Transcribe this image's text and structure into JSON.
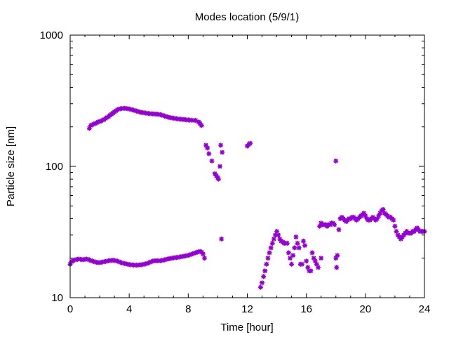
{
  "chart_data": {
    "type": "scatter",
    "title": "Modes location (5/9/1)",
    "xlabel": "Time [hour]",
    "ylabel": "Particle size [nm]",
    "xlim": [
      0,
      24
    ],
    "ylim": [
      10,
      1000
    ],
    "yscale": "log",
    "xticks": [
      0,
      4,
      8,
      12,
      16,
      20,
      24
    ],
    "yticks": [
      10,
      100,
      1000
    ],
    "ytick_labels": [
      "10",
      "100",
      "1000"
    ],
    "grid": false,
    "legend": "none",
    "marker_color": "#9400d3",
    "series": [
      {
        "points": [
          [
            1.3,
            195
          ],
          [
            1.4,
            205
          ],
          [
            1.5,
            208
          ],
          [
            1.6,
            210
          ],
          [
            1.7,
            212
          ],
          [
            1.8,
            215
          ],
          [
            1.9,
            218
          ],
          [
            2.0,
            220
          ],
          [
            2.1,
            222
          ],
          [
            2.2,
            225
          ],
          [
            2.3,
            228
          ],
          [
            2.4,
            232
          ],
          [
            2.5,
            236
          ],
          [
            2.6,
            240
          ],
          [
            2.7,
            245
          ],
          [
            2.8,
            250
          ],
          [
            2.9,
            255
          ],
          [
            3.0,
            260
          ],
          [
            3.1,
            265
          ],
          [
            3.2,
            270
          ],
          [
            3.3,
            273
          ],
          [
            3.4,
            275
          ],
          [
            3.5,
            276
          ],
          [
            3.6,
            277
          ],
          [
            3.7,
            277
          ],
          [
            3.8,
            276
          ],
          [
            3.9,
            275
          ],
          [
            4.0,
            274
          ],
          [
            4.1,
            272
          ],
          [
            4.2,
            270
          ],
          [
            4.3,
            268
          ],
          [
            4.4,
            266
          ],
          [
            4.5,
            264
          ],
          [
            4.6,
            262
          ],
          [
            4.7,
            260
          ],
          [
            4.8,
            258
          ],
          [
            4.9,
            257
          ],
          [
            5.0,
            256
          ],
          [
            5.1,
            255
          ],
          [
            5.2,
            254
          ],
          [
            5.3,
            253
          ],
          [
            5.4,
            252
          ],
          [
            5.5,
            252
          ],
          [
            5.6,
            251
          ],
          [
            5.7,
            251
          ],
          [
            5.8,
            250
          ],
          [
            5.9,
            250
          ],
          [
            6.0,
            249
          ],
          [
            6.1,
            248
          ],
          [
            6.2,
            246
          ],
          [
            6.3,
            244
          ],
          [
            6.4,
            242
          ],
          [
            6.5,
            240
          ],
          [
            6.6,
            238
          ],
          [
            6.7,
            236
          ],
          [
            6.8,
            235
          ],
          [
            6.9,
            234
          ],
          [
            7.0,
            233
          ],
          [
            7.1,
            232
          ],
          [
            7.2,
            231
          ],
          [
            7.3,
            230
          ],
          [
            7.4,
            229
          ],
          [
            7.5,
            229
          ],
          [
            7.6,
            228
          ],
          [
            7.7,
            228
          ],
          [
            7.8,
            227
          ],
          [
            7.9,
            226
          ],
          [
            8.0,
            226
          ],
          [
            8.1,
            225
          ],
          [
            8.2,
            225
          ],
          [
            8.4,
            224
          ],
          [
            8.5,
            224
          ],
          [
            8.7,
            218
          ],
          [
            8.8,
            212
          ],
          [
            8.9,
            205
          ],
          [
            9.2,
            145
          ],
          [
            9.3,
            138
          ],
          [
            9.4,
            125
          ],
          [
            9.6,
            110
          ],
          [
            9.8,
            88
          ],
          [
            9.9,
            85
          ],
          [
            10.0,
            82
          ],
          [
            10.05,
            80
          ],
          [
            10.15,
            100
          ],
          [
            10.2,
            145
          ],
          [
            10.3,
            128
          ],
          [
            10.25,
            28
          ],
          [
            12.0,
            143
          ],
          [
            12.1,
            147
          ],
          [
            12.2,
            150
          ],
          [
            18.0,
            110
          ],
          [
            0.0,
            18
          ],
          [
            0.1,
            18.8
          ],
          [
            0.2,
            19.2
          ],
          [
            0.3,
            19.4
          ],
          [
            0.4,
            19.5
          ],
          [
            0.5,
            19.6
          ],
          [
            0.6,
            19.7
          ],
          [
            0.7,
            19.6
          ],
          [
            0.8,
            19.5
          ],
          [
            0.9,
            19.5
          ],
          [
            1.0,
            19.6
          ],
          [
            1.1,
            19.7
          ],
          [
            1.2,
            19.6
          ],
          [
            1.3,
            19.4
          ],
          [
            1.4,
            19.2
          ],
          [
            1.5,
            19.0
          ],
          [
            1.6,
            18.9
          ],
          [
            1.7,
            18.7
          ],
          [
            1.8,
            18.6
          ],
          [
            1.9,
            18.5
          ],
          [
            2.0,
            18.5
          ],
          [
            2.1,
            18.6
          ],
          [
            2.2,
            18.7
          ],
          [
            2.3,
            18.8
          ],
          [
            2.4,
            18.9
          ],
          [
            2.5,
            19.0
          ],
          [
            2.6,
            19.1
          ],
          [
            2.7,
            19.2
          ],
          [
            2.8,
            19.2
          ],
          [
            2.9,
            19.3
          ],
          [
            3.0,
            19.2
          ],
          [
            3.1,
            19.1
          ],
          [
            3.2,
            19.0
          ],
          [
            3.3,
            18.8
          ],
          [
            3.4,
            18.6
          ],
          [
            3.5,
            18.4
          ],
          [
            3.6,
            18.3
          ],
          [
            3.7,
            18.2
          ],
          [
            3.8,
            18.1
          ],
          [
            3.9,
            18.0
          ],
          [
            4.0,
            17.9
          ],
          [
            4.1,
            17.8
          ],
          [
            4.2,
            17.8
          ],
          [
            4.3,
            17.7
          ],
          [
            4.4,
            17.7
          ],
          [
            4.5,
            17.7
          ],
          [
            4.6,
            17.7
          ],
          [
            4.7,
            17.8
          ],
          [
            4.8,
            17.8
          ],
          [
            4.9,
            17.9
          ],
          [
            5.0,
            18.0
          ],
          [
            5.1,
            18.1
          ],
          [
            5.2,
            18.2
          ],
          [
            5.3,
            18.4
          ],
          [
            5.4,
            18.6
          ],
          [
            5.5,
            18.8
          ],
          [
            5.6,
            19.0
          ],
          [
            5.7,
            19.1
          ],
          [
            5.8,
            19.1
          ],
          [
            5.9,
            19.1
          ],
          [
            6.0,
            19.1
          ],
          [
            6.1,
            19.1
          ],
          [
            6.2,
            19.2
          ],
          [
            6.3,
            19.3
          ],
          [
            6.4,
            19.4
          ],
          [
            6.5,
            19.6
          ],
          [
            6.6,
            19.7
          ],
          [
            6.7,
            19.8
          ],
          [
            6.8,
            19.9
          ],
          [
            6.9,
            20.0
          ],
          [
            7.0,
            20.1
          ],
          [
            7.1,
            20.2
          ],
          [
            7.2,
            20.2
          ],
          [
            7.3,
            20.3
          ],
          [
            7.4,
            20.4
          ],
          [
            7.5,
            20.5
          ],
          [
            7.6,
            20.6
          ],
          [
            7.7,
            20.7
          ],
          [
            7.8,
            20.8
          ],
          [
            7.9,
            20.9
          ],
          [
            8.0,
            21.0
          ],
          [
            8.1,
            21.2
          ],
          [
            8.2,
            21.4
          ],
          [
            8.3,
            21.6
          ],
          [
            8.4,
            21.8
          ],
          [
            8.5,
            22.0
          ],
          [
            8.6,
            22.2
          ],
          [
            8.7,
            22.4
          ],
          [
            8.8,
            22.5
          ],
          [
            8.9,
            22.3
          ],
          [
            9.0,
            21.5
          ],
          [
            9.1,
            20.0
          ],
          [
            12.9,
            12
          ],
          [
            13.0,
            13
          ],
          [
            13.1,
            14.5
          ],
          [
            13.2,
            16
          ],
          [
            13.3,
            18
          ],
          [
            13.4,
            20
          ],
          [
            13.5,
            22
          ],
          [
            13.6,
            24
          ],
          [
            13.7,
            26
          ],
          [
            13.8,
            28
          ],
          [
            13.9,
            30
          ],
          [
            14.0,
            32
          ],
          [
            14.1,
            30
          ],
          [
            14.2,
            28
          ],
          [
            14.3,
            27
          ],
          [
            14.4,
            26.5
          ],
          [
            14.5,
            26
          ],
          [
            14.6,
            26
          ],
          [
            14.7,
            26
          ],
          [
            14.8,
            22
          ],
          [
            14.9,
            20
          ],
          [
            15.0,
            18
          ],
          [
            15.1,
            21
          ],
          [
            15.2,
            24
          ],
          [
            15.3,
            29
          ],
          [
            15.4,
            26
          ],
          [
            15.5,
            24
          ],
          [
            15.6,
            18
          ],
          [
            15.7,
            18
          ],
          [
            15.8,
            27
          ],
          [
            15.9,
            25
          ],
          [
            16.0,
            19
          ],
          [
            16.1,
            17
          ],
          [
            16.2,
            16
          ],
          [
            16.3,
            16
          ],
          [
            16.4,
            22
          ],
          [
            16.5,
            20
          ],
          [
            16.6,
            19
          ],
          [
            16.7,
            18
          ],
          [
            16.8,
            17
          ],
          [
            17.0,
            20
          ],
          [
            16.9,
            35
          ],
          [
            17.0,
            37
          ],
          [
            17.1,
            36
          ],
          [
            17.2,
            36
          ],
          [
            17.3,
            36
          ],
          [
            17.4,
            35
          ],
          [
            17.5,
            36
          ],
          [
            17.6,
            36
          ],
          [
            17.7,
            37
          ],
          [
            17.8,
            37
          ],
          [
            17.9,
            36
          ],
          [
            18.0,
            20
          ],
          [
            18.05,
            17
          ],
          [
            18.1,
            21
          ],
          [
            18.2,
            33
          ],
          [
            18.3,
            40
          ],
          [
            18.4,
            41
          ],
          [
            18.5,
            40
          ],
          [
            18.6,
            39
          ],
          [
            18.7,
            38
          ],
          [
            18.8,
            39
          ],
          [
            18.9,
            40
          ],
          [
            19.0,
            40
          ],
          [
            19.1,
            41
          ],
          [
            19.2,
            41
          ],
          [
            19.3,
            40
          ],
          [
            19.4,
            39
          ],
          [
            19.5,
            40
          ],
          [
            19.6,
            41
          ],
          [
            19.7,
            42
          ],
          [
            19.8,
            43
          ],
          [
            19.9,
            44
          ],
          [
            20.0,
            42
          ],
          [
            20.1,
            40
          ],
          [
            20.2,
            39
          ],
          [
            20.3,
            39
          ],
          [
            20.4,
            40
          ],
          [
            20.5,
            41
          ],
          [
            20.6,
            40
          ],
          [
            20.7,
            39
          ],
          [
            20.8,
            40
          ],
          [
            20.9,
            42
          ],
          [
            21.0,
            44
          ],
          [
            21.1,
            46
          ],
          [
            21.2,
            47
          ],
          [
            21.3,
            44
          ],
          [
            21.4,
            43
          ],
          [
            21.5,
            42
          ],
          [
            21.6,
            41
          ],
          [
            21.7,
            41
          ],
          [
            21.8,
            40
          ],
          [
            21.9,
            39
          ],
          [
            22.0,
            35
          ],
          [
            22.1,
            32
          ],
          [
            22.2,
            30
          ],
          [
            22.3,
            29
          ],
          [
            22.4,
            28
          ],
          [
            22.5,
            29
          ],
          [
            22.6,
            30
          ],
          [
            22.7,
            31
          ],
          [
            22.8,
            32
          ],
          [
            22.9,
            31
          ],
          [
            23.0,
            31
          ],
          [
            23.1,
            31
          ],
          [
            23.2,
            32
          ],
          [
            23.3,
            32
          ],
          [
            23.4,
            33
          ],
          [
            23.5,
            34
          ],
          [
            23.6,
            33
          ],
          [
            23.7,
            32
          ],
          [
            23.8,
            32
          ],
          [
            23.9,
            32
          ],
          [
            24.0,
            32
          ]
        ]
      }
    ]
  }
}
